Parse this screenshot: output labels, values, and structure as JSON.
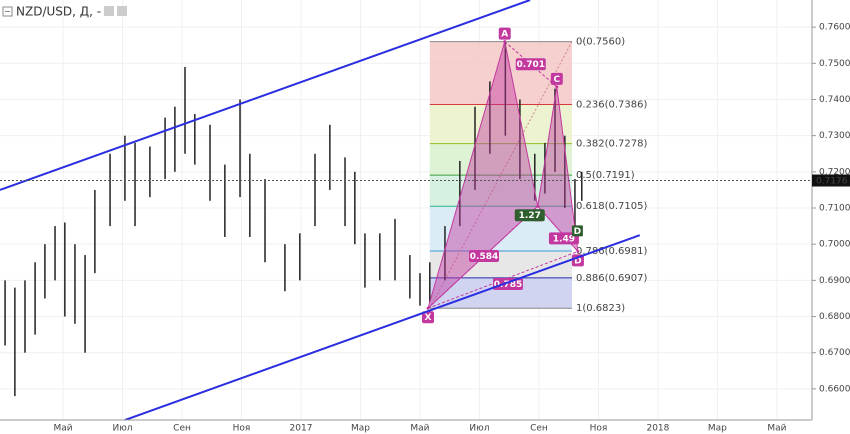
{
  "chart_data": {
    "type": "range-bars",
    "title": "NZD/USD, Д, -",
    "current_price": {
      "value": 0.7176,
      "label": "0.7176"
    },
    "x": [
      2.05,
      2.38,
      2.72,
      3.06,
      3.39,
      3.73,
      4.06,
      4.4,
      4.74,
      5.07,
      5.58,
      6.08,
      6.42,
      6.92,
      7.43,
      7.76,
      8.1,
      8.43,
      8.94,
      9.44,
      9.95,
      10.28,
      10.79,
      11.46,
      11.96,
      12.47,
      12.97,
      13.48,
      13.81,
      14.15,
      14.65,
      15.16,
      15.66,
      16.0,
      16.33,
      16.84,
      17.34,
      17.85,
      18.35,
      18.87,
      19.36,
      19.86,
      20.2,
      20.54,
      20.87,
      21.21,
      21.44
    ],
    "highs": [
      0.69,
      0.688,
      0.69,
      0.695,
      0.7,
      0.705,
      0.706,
      0.7,
      0.697,
      0.715,
      0.725,
      0.73,
      0.728,
      0.727,
      0.735,
      0.738,
      0.749,
      0.736,
      0.733,
      0.722,
      0.74,
      0.725,
      0.718,
      0.7,
      0.703,
      0.725,
      0.733,
      0.724,
      0.72,
      0.703,
      0.703,
      0.707,
      0.697,
      0.692,
      0.695,
      0.705,
      0.723,
      0.738,
      0.745,
      0.756,
      0.74,
      0.725,
      0.728,
      0.743,
      0.73,
      0.718,
      0.72
    ],
    "lows": [
      0.672,
      0.658,
      0.67,
      0.675,
      0.685,
      0.69,
      0.68,
      0.678,
      0.67,
      0.692,
      0.705,
      0.712,
      0.705,
      0.713,
      0.718,
      0.72,
      0.725,
      0.722,
      0.712,
      0.702,
      0.713,
      0.702,
      0.695,
      0.687,
      0.69,
      0.705,
      0.715,
      0.705,
      0.7,
      0.688,
      0.69,
      0.69,
      0.685,
      0.683,
      0.684,
      0.69,
      0.705,
      0.715,
      0.725,
      0.73,
      0.718,
      0.712,
      0.714,
      0.72,
      0.71,
      0.702,
      0.712
    ],
    "color": "#222222",
    "xlim": [
      1.88,
      29.18
    ],
    "ylim": [
      0.6514,
      0.7675
    ],
    "xticks": [
      {
        "value": 4,
        "label": "Май"
      },
      {
        "value": 6,
        "label": "Июл"
      },
      {
        "value": 8,
        "label": "Сен"
      },
      {
        "value": 10,
        "label": "Ноя"
      },
      {
        "value": 12,
        "label": "2017"
      },
      {
        "value": 14,
        "label": "Мар"
      },
      {
        "value": 16,
        "label": "Май"
      },
      {
        "value": 18,
        "label": "Июл"
      },
      {
        "value": 20,
        "label": "Сен"
      },
      {
        "value": 22,
        "label": "Ноя"
      },
      {
        "value": 24,
        "label": "2018"
      },
      {
        "value": 26,
        "label": "Мар"
      },
      {
        "value": 28,
        "label": "Май"
      }
    ],
    "yticks": [
      {
        "value": 0.66,
        "label": "0.6600"
      },
      {
        "value": 0.67,
        "label": "0.6700"
      },
      {
        "value": 0.68,
        "label": "0.6800"
      },
      {
        "value": 0.69,
        "label": "0.6900"
      },
      {
        "value": 0.7,
        "label": "0.7000"
      },
      {
        "value": 0.71,
        "label": "0.7100"
      },
      {
        "value": 0.72,
        "label": "0.7200"
      },
      {
        "value": 0.73,
        "label": "0.7300"
      },
      {
        "value": 0.74,
        "label": "0.7400"
      },
      {
        "value": 0.75,
        "label": "0.7500"
      },
      {
        "value": 0.76,
        "label": "0.7600"
      }
    ],
    "grid": true,
    "fib_x": [
      16.33,
      21.11
    ],
    "fib_levels": [
      {
        "value": 0.756,
        "label": "0(0.7560)",
        "color": "#888888",
        "fill": "#f4c7c7"
      },
      {
        "value": 0.7386,
        "label": "0.236(0.7386)",
        "color": "#d43a3a",
        "fill": "#eaf1c8"
      },
      {
        "value": 0.7278,
        "label": "0.382(0.7278)",
        "color": "#8fbf2a",
        "fill": "#d8f0cc"
      },
      {
        "value": 0.7191,
        "label": "0.5(0.7191)",
        "color": "#3aa03a",
        "fill": "#cfeedd"
      },
      {
        "value": 0.7105,
        "label": "0.618(0.7105)",
        "color": "#2ab88a",
        "fill": "#d6e9f5"
      },
      {
        "value": 0.6981,
        "label": "0.786(0.6981)",
        "color": "#3a9ad4",
        "fill": "#e3e3e3"
      },
      {
        "value": 0.6907,
        "label": "0.886(0.6907)",
        "color": "#2a2aa8",
        "fill": "#c9cdef"
      },
      {
        "value": 0.6823,
        "label": "1(0.6823)",
        "color": "#888888",
        "fill": "none"
      }
    ],
    "trend_lines": [
      {
        "x": [
          1.88,
          19.7
        ],
        "y": [
          0.715,
          0.7675
        ],
        "color": "#2a2ee0"
      },
      {
        "x": [
          6.08,
          23.39
        ],
        "y": [
          0.6514,
          0.7025
        ],
        "color": "#2a2ee0"
      }
    ],
    "pattern": {
      "color": "#c2389f",
      "points": [
        {
          "name": "X",
          "x": 16.27,
          "y": 0.6823
        },
        {
          "name": "A",
          "x": 18.85,
          "y": 0.756
        },
        {
          "name": "B",
          "x": 19.96,
          "y": 0.7105
        },
        {
          "name": "C",
          "x": 20.6,
          "y": 0.7435
        },
        {
          "name": "D",
          "x": 21.31,
          "y": 0.698
        }
      ],
      "ratios": [
        0.701,
        1.27,
        1.49,
        0.584,
        0.785
      ],
      "d_marker": "D"
    }
  }
}
